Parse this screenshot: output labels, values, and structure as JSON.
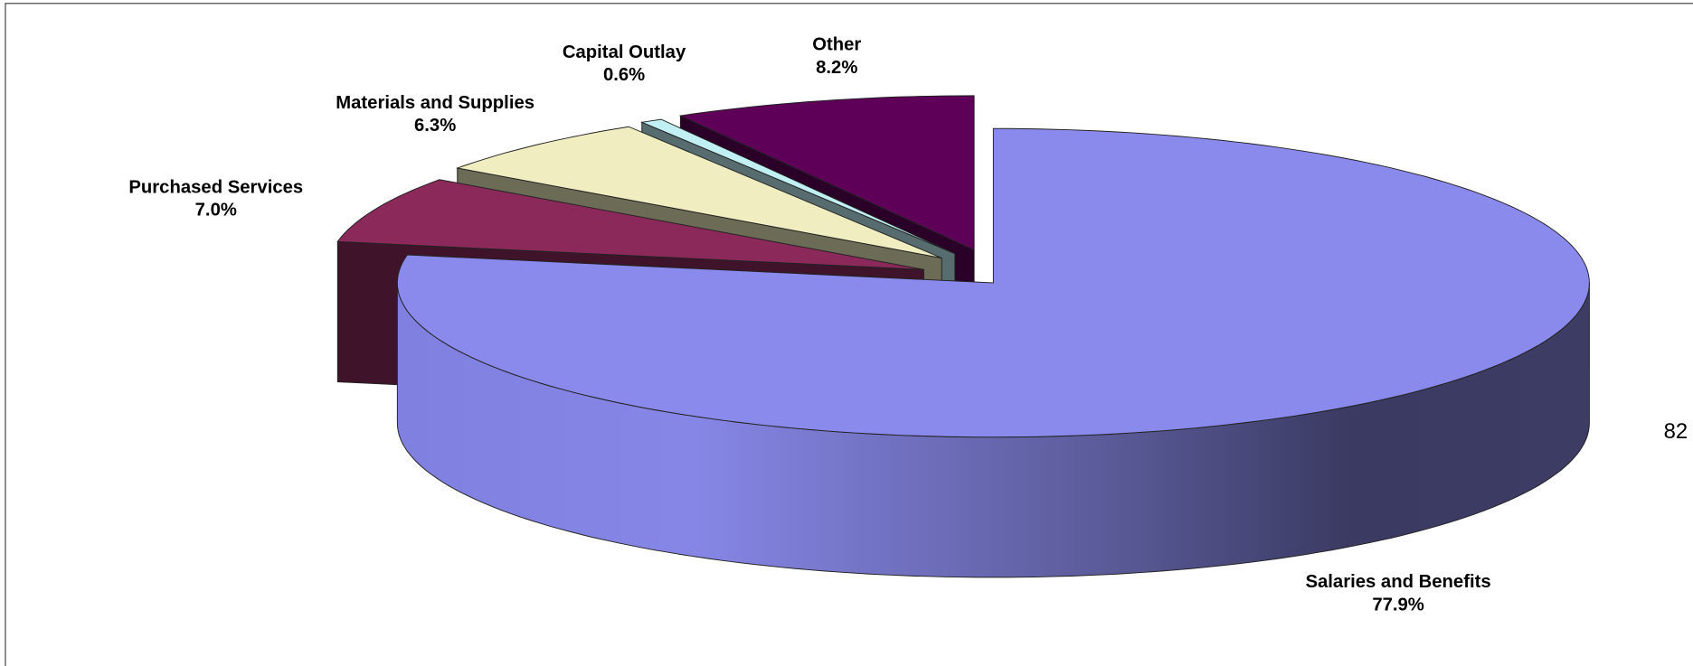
{
  "chart_data": {
    "type": "pie",
    "style": "3d-exploded",
    "categories": [
      "Salaries and Benefits",
      "Purchased Services",
      "Materials and Supplies",
      "Capital Outlay",
      "Other"
    ],
    "values": [
      77.9,
      7.0,
      6.3,
      0.6,
      8.2
    ],
    "value_labels": [
      "77.9%",
      "7.0%",
      "6.3%",
      "0.6%",
      "8.2%"
    ],
    "colors": [
      "#8a8aec",
      "#8b2a5a",
      "#f0eec0",
      "#c0f0f4",
      "#5e0058"
    ]
  },
  "page_number": "82"
}
